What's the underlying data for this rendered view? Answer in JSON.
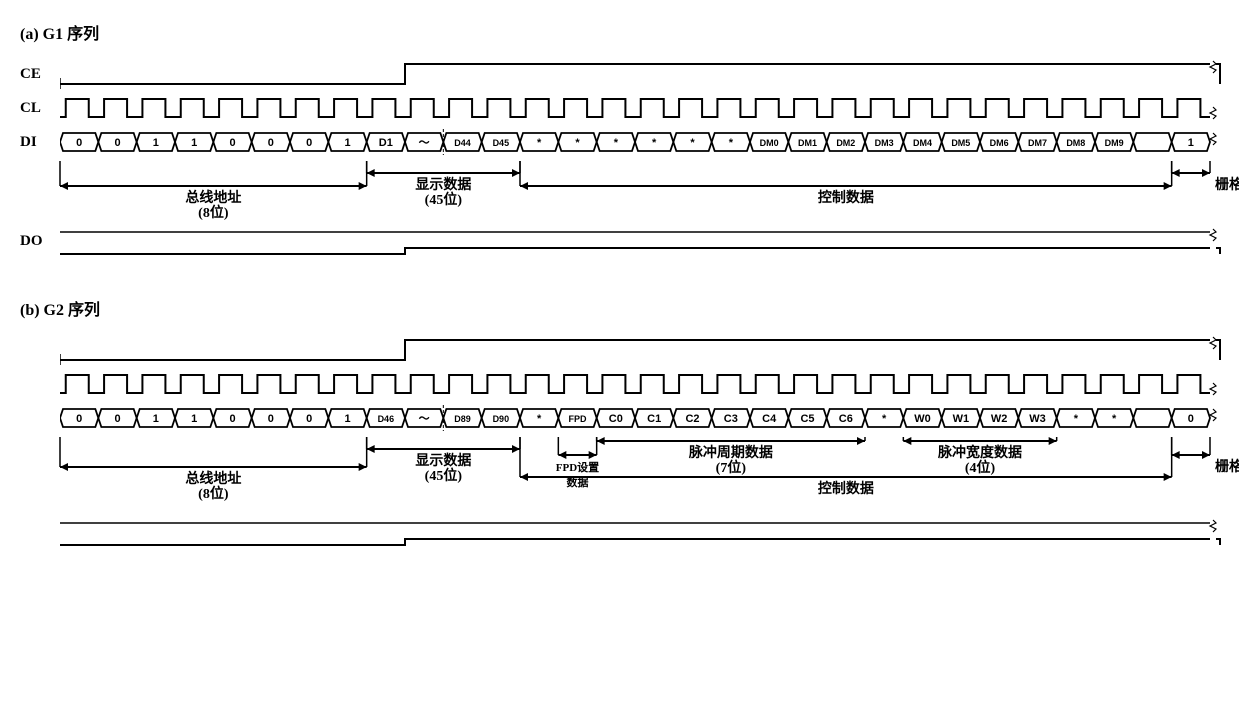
{
  "sequences": [
    {
      "key": "g1",
      "title": "(a) G1 序列",
      "signals": [
        "CE",
        "CL",
        "DI",
        "DO"
      ],
      "di_cells": [
        "0",
        "0",
        "1",
        "1",
        "0",
        "0",
        "0",
        "1",
        "D1",
        "～",
        "D44",
        "D45",
        "*",
        "*",
        "*",
        "*",
        "*",
        "*",
        "DM0",
        "DM1",
        "DM2",
        "DM3",
        "DM4",
        "DM5",
        "DM6",
        "DM7",
        "DM8",
        "DM9",
        "",
        "1"
      ],
      "ce_rise_at": 9,
      "di_dashed_between": [
        9,
        10
      ],
      "brackets": [
        {
          "from": 0,
          "to": 8,
          "label_lines": [
            "总线地址",
            "(8位)"
          ],
          "y": 25
        },
        {
          "from": 8,
          "to": 12,
          "label_lines": [
            "显示数据",
            "(45位)"
          ],
          "y": 12
        },
        {
          "from": 12,
          "to": 29,
          "label_lines": [
            "控制数据"
          ],
          "y": 25
        },
        {
          "from": 29,
          "to": 30,
          "label_lines": [
            "栅格标识符 DD"
          ],
          "y": 12,
          "label_offset": "right"
        }
      ]
    },
    {
      "key": "g2",
      "title": "(b) G2 序列",
      "signals": [
        "",
        "",
        "",
        ""
      ],
      "di_cells": [
        "0",
        "0",
        "1",
        "1",
        "0",
        "0",
        "0",
        "1",
        "D46",
        "～",
        "D89",
        "D90",
        "*",
        "FPD",
        "C0",
        "C1",
        "C2",
        "C3",
        "C4",
        "C5",
        "C6",
        "*",
        "W0",
        "W1",
        "W2",
        "W3",
        "*",
        "*",
        "",
        "0"
      ],
      "ce_rise_at": 9,
      "di_dashed_between": [
        9,
        10
      ],
      "brackets": [
        {
          "from": 0,
          "to": 8,
          "label_lines": [
            "总线地址",
            "(8位)"
          ],
          "y": 30
        },
        {
          "from": 8,
          "to": 12,
          "label_lines": [
            "显示数据",
            "(45位)"
          ],
          "y": 12
        },
        {
          "from": 13,
          "to": 14,
          "label_lines": [
            "FPD设置",
            "数据"
          ],
          "y": 18,
          "small": true
        },
        {
          "from": 14,
          "to": 21,
          "label_lines": [
            "脉冲周期数据",
            "(7位)"
          ],
          "y": 4
        },
        {
          "from": 22,
          "to": 26,
          "label_lines": [
            "脉冲宽度数据",
            "(4位)"
          ],
          "y": 4
        },
        {
          "from": 12,
          "to": 29,
          "label_lines": [
            "控制数据"
          ],
          "y": 40
        },
        {
          "from": 29,
          "to": 30,
          "label_lines": [
            "栅格标识符 DD"
          ],
          "y": 18,
          "label_offset": "right"
        }
      ]
    }
  ],
  "layout": {
    "body_width": 1150,
    "cell_count": 30,
    "break_gap": 6
  },
  "colors": {
    "stroke": "#000000",
    "bg": "#ffffff"
  }
}
